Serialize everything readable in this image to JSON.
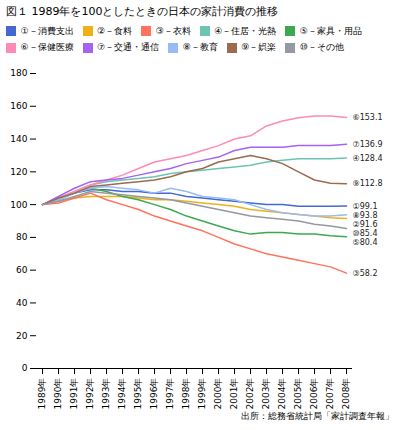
{
  "chart_data": {
    "type": "line",
    "title": "図１ 1989年を100としたときの日本の家計消費の推移",
    "caption": "出所：総務省統計局「家計調査年報」",
    "categories": [
      "1989年",
      "1990年",
      "1991年",
      "1992年",
      "1993年",
      "1994年",
      "1995年",
      "1996年",
      "1997年",
      "1998年",
      "1999年",
      "2000年",
      "2001年",
      "2002年",
      "2003年",
      "2004年",
      "2005年",
      "2006年",
      "2007年",
      "2008年"
    ],
    "series": [
      {
        "name": "①－消費支出",
        "values": [
          100,
          104,
          107,
          109,
          109,
          108,
          108,
          107,
          107,
          105,
          104,
          103,
          102,
          101,
          100,
          100,
          99,
          99,
          99,
          99.1
        ],
        "value_labels": [
          null,
          null,
          null,
          null,
          null,
          null,
          null,
          null,
          null,
          null,
          null,
          null,
          null,
          null,
          null,
          null,
          null,
          null,
          null,
          "①99.1"
        ]
      },
      {
        "name": "②－食料",
        "values": [
          100,
          102,
          104,
          105,
          105,
          105,
          104,
          103,
          103,
          102,
          101,
          100,
          99,
          97,
          96,
          95,
          94,
          93,
          92,
          91.6
        ],
        "value_labels": [
          null,
          null,
          null,
          null,
          null,
          null,
          null,
          null,
          null,
          null,
          null,
          null,
          null,
          null,
          null,
          null,
          null,
          null,
          null,
          "②91.6"
        ]
      },
      {
        "name": "③－衣料",
        "values": [
          100,
          101,
          104,
          107,
          103,
          100,
          97,
          93,
          90,
          87,
          84,
          80,
          76,
          73,
          70,
          68,
          66,
          64,
          62,
          58.2
        ],
        "value_labels": [
          null,
          null,
          null,
          null,
          null,
          null,
          null,
          null,
          null,
          null,
          null,
          null,
          null,
          null,
          null,
          null,
          null,
          null,
          null,
          "③58.2"
        ]
      },
      {
        "name": "④－住居・光熱",
        "values": [
          100,
          104,
          108,
          112,
          114,
          115,
          116,
          117,
          119,
          120,
          121,
          122,
          123,
          124,
          126,
          127,
          128,
          128,
          128,
          128.4
        ],
        "value_labels": [
          null,
          null,
          null,
          null,
          null,
          null,
          null,
          null,
          null,
          null,
          null,
          null,
          null,
          null,
          null,
          null,
          null,
          null,
          null,
          "④128.4"
        ]
      },
      {
        "name": "⑤－家具・用品",
        "values": [
          100,
          103,
          107,
          110,
          108,
          105,
          103,
          100,
          97,
          93,
          90,
          87,
          84,
          82,
          83,
          83,
          82,
          82,
          81,
          80.4
        ],
        "value_labels": [
          null,
          null,
          null,
          null,
          null,
          null,
          null,
          null,
          null,
          null,
          null,
          null,
          null,
          null,
          null,
          null,
          null,
          null,
          null,
          "⑤80.4"
        ]
      },
      {
        "name": "⑥－保健医療",
        "values": [
          100,
          104,
          108,
          112,
          115,
          118,
          122,
          126,
          128,
          130,
          133,
          136,
          140,
          142,
          148,
          151,
          153,
          154,
          154,
          153.1
        ],
        "value_labels": [
          null,
          null,
          null,
          null,
          null,
          null,
          null,
          null,
          null,
          null,
          null,
          null,
          null,
          null,
          null,
          null,
          null,
          null,
          null,
          "⑥153.1"
        ]
      },
      {
        "name": "⑦－交通・通信",
        "values": [
          100,
          105,
          110,
          114,
          115,
          116,
          118,
          120,
          122,
          125,
          127,
          129,
          133,
          135,
          135,
          135,
          136,
          136,
          136,
          136.9
        ],
        "value_labels": [
          null,
          null,
          null,
          null,
          null,
          null,
          null,
          null,
          null,
          null,
          null,
          null,
          null,
          null,
          null,
          null,
          null,
          null,
          null,
          "⑦136.9"
        ]
      },
      {
        "name": "⑧－教育",
        "values": [
          100,
          103,
          107,
          110,
          111,
          110,
          109,
          107,
          110,
          108,
          105,
          104,
          103,
          100,
          97,
          95,
          94,
          93,
          93,
          93.8
        ],
        "value_labels": [
          null,
          null,
          null,
          null,
          null,
          null,
          null,
          null,
          null,
          null,
          null,
          null,
          null,
          null,
          null,
          null,
          null,
          null,
          null,
          "⑧93.8"
        ]
      },
      {
        "name": "⑨－娯楽",
        "values": [
          100,
          104,
          107,
          111,
          112,
          113,
          114,
          115,
          117,
          120,
          122,
          126,
          128,
          130,
          128,
          125,
          120,
          115,
          113,
          112.8
        ],
        "value_labels": [
          null,
          null,
          null,
          null,
          null,
          null,
          null,
          null,
          null,
          null,
          null,
          null,
          null,
          null,
          null,
          null,
          null,
          null,
          null,
          "⑨112.8"
        ]
      },
      {
        "name": "⑩－その他",
        "values": [
          100,
          102,
          105,
          108,
          107,
          106,
          105,
          104,
          103,
          101,
          99,
          97,
          95,
          93,
          92,
          91,
          90,
          88,
          87,
          85.4
        ],
        "value_labels": [
          null,
          null,
          null,
          null,
          null,
          null,
          null,
          null,
          null,
          null,
          null,
          null,
          null,
          null,
          null,
          null,
          null,
          null,
          null,
          "⑩85.4"
        ]
      }
    ],
    "ylim": [
      0,
      180
    ],
    "yticks": [
      0,
      20,
      40,
      60,
      80,
      100,
      120,
      140,
      160,
      180
    ],
    "legend": "top",
    "grid": false
  }
}
